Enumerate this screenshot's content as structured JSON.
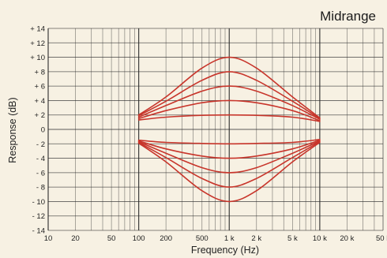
{
  "chart_data": {
    "type": "line",
    "title": "Midrange",
    "xlabel": "Frequency (Hz)",
    "ylabel": "Response (dB)",
    "x_scale": "log",
    "xlim": [
      10,
      50000
    ],
    "ylim": [
      -14,
      14
    ],
    "grid": true,
    "x_tick_labels": [
      {
        "value": 10,
        "label": "10"
      },
      {
        "value": 20,
        "label": "20"
      },
      {
        "value": 50,
        "label": "50"
      },
      {
        "value": 100,
        "label": "100"
      },
      {
        "value": 200,
        "label": "200"
      },
      {
        "value": 500,
        "label": "500"
      },
      {
        "value": 1000,
        "label": "1 k"
      },
      {
        "value": 2000,
        "label": "2 k"
      },
      {
        "value": 5000,
        "label": "5 k"
      },
      {
        "value": 10000,
        "label": "10 k"
      },
      {
        "value": 20000,
        "label": "20 k"
      },
      {
        "value": 50000,
        "label": "50 k"
      }
    ],
    "y_tick_labels": [
      {
        "value": 14,
        "label": "+ 14"
      },
      {
        "value": 12,
        "label": "+ 12"
      },
      {
        "value": 10,
        "label": "+ 10"
      },
      {
        "value": 8,
        "label": "+ 8"
      },
      {
        "value": 6,
        "label": "+ 6"
      },
      {
        "value": 4,
        "label": "+ 4"
      },
      {
        "value": 2,
        "label": "+ 2"
      },
      {
        "value": 0,
        "label": "0"
      },
      {
        "value": -2,
        "label": "- 2"
      },
      {
        "value": -4,
        "label": "- 4"
      },
      {
        "value": -6,
        "label": "- 6"
      },
      {
        "value": -8,
        "label": "- 8"
      },
      {
        "value": -10,
        "label": "- 10"
      },
      {
        "value": -12,
        "label": "- 12"
      },
      {
        "value": -14,
        "label": "- 14"
      }
    ],
    "series": [
      {
        "values": [
          {
            "x": 100,
            "y": 2.0
          },
          {
            "x": 200,
            "y": 4.5
          },
          {
            "x": 500,
            "y": 8.5
          },
          {
            "x": 1000,
            "y": 10.0
          },
          {
            "x": 2000,
            "y": 8.5
          },
          {
            "x": 5000,
            "y": 4.5
          },
          {
            "x": 10000,
            "y": 1.6
          }
        ]
      },
      {
        "values": [
          {
            "x": 100,
            "y": 1.9
          },
          {
            "x": 200,
            "y": 3.9
          },
          {
            "x": 500,
            "y": 6.8
          },
          {
            "x": 1000,
            "y": 8.0
          },
          {
            "x": 2000,
            "y": 6.8
          },
          {
            "x": 5000,
            "y": 3.9
          },
          {
            "x": 10000,
            "y": 1.5
          }
        ]
      },
      {
        "values": [
          {
            "x": 100,
            "y": 1.7
          },
          {
            "x": 200,
            "y": 3.3
          },
          {
            "x": 500,
            "y": 5.3
          },
          {
            "x": 1000,
            "y": 6.0
          },
          {
            "x": 2000,
            "y": 5.3
          },
          {
            "x": 5000,
            "y": 3.3
          },
          {
            "x": 10000,
            "y": 1.4
          }
        ]
      },
      {
        "values": [
          {
            "x": 100,
            "y": 1.5
          },
          {
            "x": 200,
            "y": 2.6
          },
          {
            "x": 500,
            "y": 3.7
          },
          {
            "x": 1000,
            "y": 4.0
          },
          {
            "x": 2000,
            "y": 3.7
          },
          {
            "x": 5000,
            "y": 2.6
          },
          {
            "x": 10000,
            "y": 1.2
          }
        ]
      },
      {
        "values": [
          {
            "x": 100,
            "y": 1.3
          },
          {
            "x": 200,
            "y": 1.7
          },
          {
            "x": 500,
            "y": 1.95
          },
          {
            "x": 1000,
            "y": 2.0
          },
          {
            "x": 2000,
            "y": 1.95
          },
          {
            "x": 5000,
            "y": 1.7
          },
          {
            "x": 10000,
            "y": 1.1
          }
        ]
      },
      {
        "values": [
          {
            "x": 100,
            "y": -1.5
          },
          {
            "x": 200,
            "y": -1.8
          },
          {
            "x": 500,
            "y": -1.95
          },
          {
            "x": 1000,
            "y": -2.0
          },
          {
            "x": 2000,
            "y": -1.95
          },
          {
            "x": 5000,
            "y": -1.8
          },
          {
            "x": 10000,
            "y": -1.4
          }
        ]
      },
      {
        "values": [
          {
            "x": 100,
            "y": -1.6
          },
          {
            "x": 200,
            "y": -2.7
          },
          {
            "x": 500,
            "y": -3.7
          },
          {
            "x": 1000,
            "y": -4.0
          },
          {
            "x": 2000,
            "y": -3.7
          },
          {
            "x": 5000,
            "y": -2.7
          },
          {
            "x": 10000,
            "y": -1.5
          }
        ]
      },
      {
        "values": [
          {
            "x": 100,
            "y": -1.7
          },
          {
            "x": 200,
            "y": -3.3
          },
          {
            "x": 500,
            "y": -5.3
          },
          {
            "x": 1000,
            "y": -6.0
          },
          {
            "x": 2000,
            "y": -5.3
          },
          {
            "x": 5000,
            "y": -3.3
          },
          {
            "x": 10000,
            "y": -1.6
          }
        ]
      },
      {
        "values": [
          {
            "x": 100,
            "y": -1.8
          },
          {
            "x": 200,
            "y": -3.9
          },
          {
            "x": 500,
            "y": -6.8
          },
          {
            "x": 1000,
            "y": -8.0
          },
          {
            "x": 2000,
            "y": -6.8
          },
          {
            "x": 5000,
            "y": -3.9
          },
          {
            "x": 10000,
            "y": -1.7
          }
        ]
      },
      {
        "values": [
          {
            "x": 100,
            "y": -1.9
          },
          {
            "x": 200,
            "y": -4.5
          },
          {
            "x": 500,
            "y": -8.5
          },
          {
            "x": 1000,
            "y": -10.0
          },
          {
            "x": 2000,
            "y": -8.5
          },
          {
            "x": 5000,
            "y": -4.5
          },
          {
            "x": 10000,
            "y": -1.8
          }
        ]
      }
    ],
    "colors": {
      "background": "#f7f1e3",
      "grid": "#2a2a2a",
      "curve": "#c8352b",
      "text": "#222222"
    }
  }
}
